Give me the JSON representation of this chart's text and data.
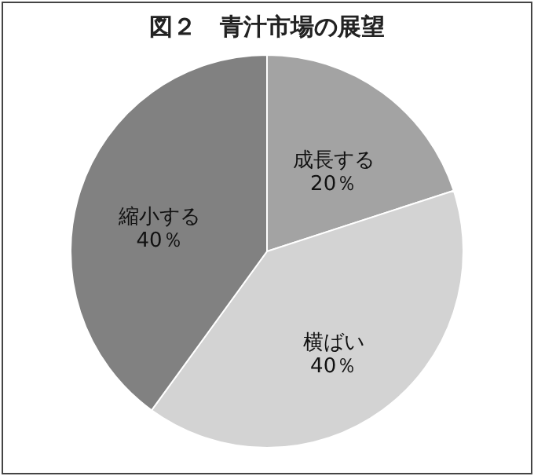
{
  "chart_data": {
    "type": "pie",
    "title": "図２　青汁市場の展望",
    "categories": [
      "成長する",
      "横ばい",
      "縮小する"
    ],
    "values": [
      20,
      40,
      40
    ],
    "value_labels": [
      "20％",
      "40％",
      "40％"
    ],
    "colors": [
      "#a3a3a3",
      "#d3d3d3",
      "#818181"
    ],
    "legend": false
  }
}
